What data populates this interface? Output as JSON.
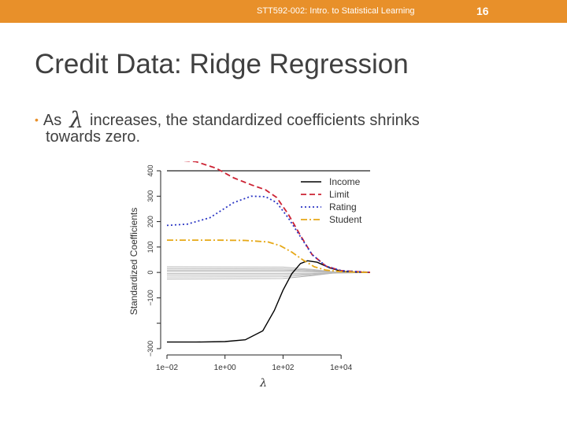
{
  "header": {
    "course": "STT592-002: Intro. to Statistical Learning",
    "page_number": "16",
    "bar_color": "#e8902a"
  },
  "slide": {
    "title": "Credit Data: Ridge Regression",
    "bullet_part1": "As",
    "bullet_symbol": "λ",
    "bullet_part2": "increases, the standardized coefficients shrinks",
    "bullet_line2": "towards zero."
  },
  "chart_data": {
    "type": "line",
    "xlabel": "λ",
    "ylabel": "Standardized Coefficients",
    "x_scale": "log",
    "xlim": [
      0.01,
      100000
    ],
    "ylim": [
      -300,
      400
    ],
    "x_ticks": [
      {
        "value": 0.01,
        "label": "1e−02"
      },
      {
        "value": 1,
        "label": "1e+00"
      },
      {
        "value": 100,
        "label": "1e+02"
      },
      {
        "value": 10000,
        "label": "1e+04"
      }
    ],
    "y_ticks": [
      {
        "value": -300,
        "label": "−300"
      },
      {
        "value": -200,
        "label": ""
      },
      {
        "value": -100,
        "label": "−100"
      },
      {
        "value": 0,
        "label": "0"
      },
      {
        "value": 100,
        "label": "100"
      },
      {
        "value": 200,
        "label": "200"
      },
      {
        "value": 300,
        "label": "300"
      },
      {
        "value": 400,
        "label": "400"
      }
    ],
    "legend_position": "top-right",
    "series": [
      {
        "name": "Income",
        "color": "#000000",
        "dash": "solid",
        "points": [
          [
            0.01,
            -274
          ],
          [
            0.1,
            -274
          ],
          [
            1,
            -272
          ],
          [
            5,
            -265
          ],
          [
            20,
            -230
          ],
          [
            50,
            -150
          ],
          [
            100,
            -70
          ],
          [
            200,
            -5
          ],
          [
            400,
            35
          ],
          [
            700,
            46
          ],
          [
            1500,
            40
          ],
          [
            4000,
            18
          ],
          [
            10000,
            5
          ],
          [
            30000,
            1
          ],
          [
            100000,
            0
          ]
        ]
      },
      {
        "name": "Limit",
        "color": "#cc2233",
        "dash": "dashed",
        "points": [
          [
            0.01,
            445
          ],
          [
            0.1,
            436
          ],
          [
            0.5,
            410
          ],
          [
            2,
            372
          ],
          [
            8,
            345
          ],
          [
            25,
            325
          ],
          [
            60,
            295
          ],
          [
            150,
            230
          ],
          [
            400,
            145
          ],
          [
            1000,
            70
          ],
          [
            3000,
            25
          ],
          [
            10000,
            7
          ],
          [
            100000,
            0
          ]
        ]
      },
      {
        "name": "Rating",
        "color": "#2b36c4",
        "dash": "dotted",
        "points": [
          [
            0.01,
            185
          ],
          [
            0.05,
            190
          ],
          [
            0.3,
            215
          ],
          [
            2,
            275
          ],
          [
            8,
            300
          ],
          [
            25,
            298
          ],
          [
            60,
            275
          ],
          [
            150,
            215
          ],
          [
            400,
            140
          ],
          [
            1000,
            70
          ],
          [
            3000,
            25
          ],
          [
            10000,
            7
          ],
          [
            100000,
            0
          ]
        ]
      },
      {
        "name": "Student",
        "color": "#e6a817",
        "dash": "dotdash",
        "points": [
          [
            0.01,
            127
          ],
          [
            0.5,
            127
          ],
          [
            5,
            126
          ],
          [
            30,
            120
          ],
          [
            80,
            105
          ],
          [
            200,
            80
          ],
          [
            500,
            48
          ],
          [
            1200,
            22
          ],
          [
            3000,
            9
          ],
          [
            10000,
            3
          ],
          [
            100000,
            0
          ]
        ]
      }
    ],
    "background_lines_color": "#b8b8b8",
    "background_lines": [
      {
        "points": [
          [
            0.01,
            22
          ],
          [
            100,
            21
          ],
          [
            1000,
            12
          ],
          [
            5000,
            3
          ],
          [
            100000,
            0
          ]
        ]
      },
      {
        "points": [
          [
            0.01,
            15
          ],
          [
            100,
            14
          ],
          [
            1000,
            9
          ],
          [
            5000,
            2
          ],
          [
            100000,
            0
          ]
        ]
      },
      {
        "points": [
          [
            0.01,
            9
          ],
          [
            100,
            9
          ],
          [
            1000,
            6
          ],
          [
            5000,
            2
          ],
          [
            100000,
            0
          ]
        ]
      },
      {
        "points": [
          [
            0.01,
            4
          ],
          [
            100,
            4
          ],
          [
            1000,
            3
          ],
          [
            5000,
            1
          ],
          [
            100000,
            0
          ]
        ]
      },
      {
        "points": [
          [
            0.01,
            -4
          ],
          [
            100,
            -4
          ],
          [
            1000,
            -3
          ],
          [
            5000,
            -1
          ],
          [
            100000,
            0
          ]
        ]
      },
      {
        "points": [
          [
            0.01,
            -10
          ],
          [
            100,
            -10
          ],
          [
            1000,
            -6
          ],
          [
            5000,
            -2
          ],
          [
            100000,
            0
          ]
        ]
      },
      {
        "points": [
          [
            0.01,
            -18
          ],
          [
            100,
            -17
          ],
          [
            1000,
            -10
          ],
          [
            5000,
            -3
          ],
          [
            100000,
            0
          ]
        ]
      },
      {
        "points": [
          [
            0.01,
            -26
          ],
          [
            100,
            -24
          ],
          [
            1000,
            -13
          ],
          [
            5000,
            -3
          ],
          [
            100000,
            0
          ]
        ]
      }
    ]
  }
}
